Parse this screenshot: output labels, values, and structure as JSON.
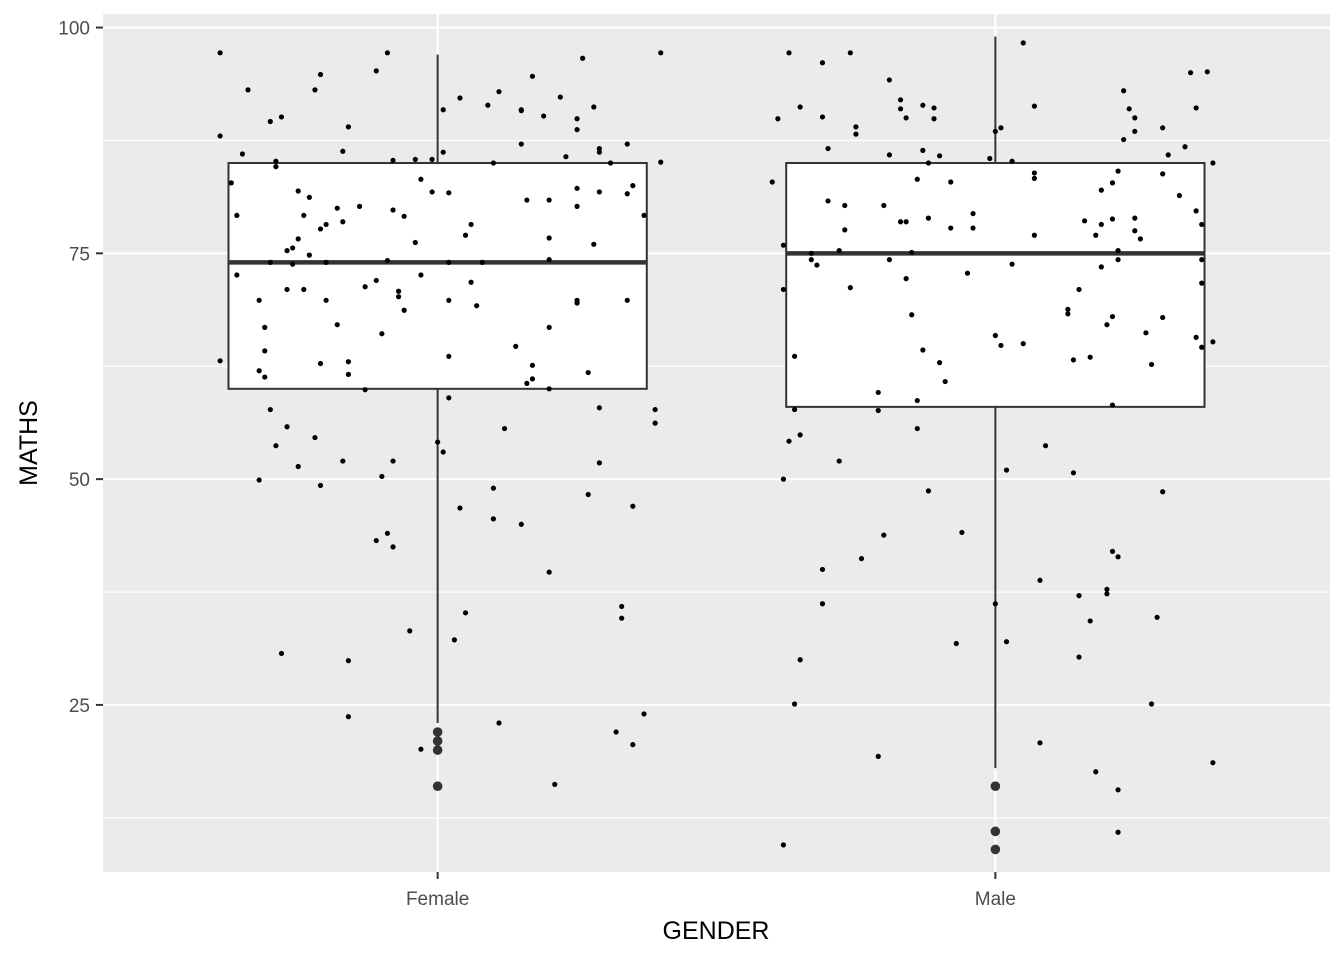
{
  "chart_data": {
    "type": "box",
    "xlabel": "GENDER",
    "ylabel": "MATHS",
    "categories": [
      "Female",
      "Male"
    ],
    "ylim": [
      6.5,
      101.5
    ],
    "yticks": [
      25,
      50,
      75,
      100
    ],
    "grid": true,
    "boxes": [
      {
        "category": "Female",
        "whisker_low": 23,
        "q1": 60,
        "median": 74,
        "q3": 85,
        "whisker_high": 97,
        "outliers": [
          22,
          21,
          20,
          16
        ]
      },
      {
        "category": "Male",
        "whisker_low": 18,
        "q1": 58,
        "median": 75,
        "q3": 85,
        "whisker_high": 99,
        "outliers": [
          16,
          11,
          9
        ]
      }
    ],
    "jitter_points": [
      {
        "category": "Female",
        "points": [
          [
            -0.39,
            97.2
          ],
          [
            -0.39,
            88
          ],
          [
            -0.39,
            63.1
          ],
          [
            -0.37,
            82.8
          ],
          [
            -0.36,
            79.2
          ],
          [
            -0.36,
            72.6
          ],
          [
            -0.35,
            86
          ],
          [
            -0.34,
            93.1
          ],
          [
            -0.32,
            69.8
          ],
          [
            -0.32,
            62
          ],
          [
            -0.32,
            49.9
          ],
          [
            -0.31,
            64.2
          ],
          [
            -0.31,
            66.8
          ],
          [
            -0.31,
            61.3
          ],
          [
            -0.3,
            74
          ],
          [
            -0.3,
            57.7
          ],
          [
            -0.3,
            89.6
          ],
          [
            -0.29,
            85.2
          ],
          [
            -0.29,
            84.6
          ],
          [
            -0.29,
            53.7
          ],
          [
            -0.28,
            90.1
          ],
          [
            -0.28,
            30.7
          ],
          [
            -0.27,
            75.3
          ],
          [
            -0.27,
            71
          ],
          [
            -0.27,
            55.8
          ],
          [
            -0.26,
            75.6
          ],
          [
            -0.26,
            73.8
          ],
          [
            -0.25,
            81.9
          ],
          [
            -0.25,
            51.4
          ],
          [
            -0.25,
            76.6
          ],
          [
            -0.24,
            71
          ],
          [
            -0.24,
            79.2
          ],
          [
            -0.23,
            81.2
          ],
          [
            -0.23,
            74.8
          ],
          [
            -0.22,
            93.1
          ],
          [
            -0.22,
            54.6
          ],
          [
            -0.21,
            94.8
          ],
          [
            -0.21,
            77.7
          ],
          [
            -0.21,
            62.8
          ],
          [
            -0.21,
            49.3
          ],
          [
            -0.2,
            78.2
          ],
          [
            -0.2,
            74
          ],
          [
            -0.2,
            69.8
          ],
          [
            -0.18,
            80
          ],
          [
            -0.18,
            67.1
          ],
          [
            -0.17,
            52
          ],
          [
            -0.17,
            86.3
          ],
          [
            -0.17,
            78.5
          ],
          [
            -0.16,
            89
          ],
          [
            -0.16,
            63
          ],
          [
            -0.16,
            61.6
          ],
          [
            -0.16,
            29.9
          ],
          [
            -0.16,
            23.7
          ],
          [
            -0.14,
            80.2
          ],
          [
            -0.13,
            71.3
          ],
          [
            -0.13,
            59.9
          ],
          [
            -0.11,
            95.2
          ],
          [
            -0.11,
            72
          ],
          [
            -0.11,
            43.2
          ],
          [
            -0.1,
            66.1
          ],
          [
            -0.1,
            50.3
          ],
          [
            -0.09,
            97.2
          ],
          [
            -0.09,
            74.2
          ],
          [
            -0.09,
            44
          ],
          [
            -0.08,
            85.3
          ],
          [
            -0.08,
            79.8
          ],
          [
            -0.08,
            42.5
          ],
          [
            -0.08,
            52
          ],
          [
            -0.07,
            70.8
          ],
          [
            -0.07,
            70.2
          ],
          [
            -0.06,
            79.1
          ],
          [
            -0.06,
            68.7
          ],
          [
            -0.05,
            33.2
          ],
          [
            -0.04,
            85.4
          ],
          [
            -0.04,
            76.2
          ],
          [
            -0.03,
            20.1
          ],
          [
            -0.03,
            83.2
          ],
          [
            -0.03,
            72.6
          ],
          [
            -0.01,
            85.4
          ],
          [
            -0.01,
            81.8
          ],
          [
            0,
            54.1
          ],
          [
            0.01,
            90.9
          ],
          [
            0.01,
            86.2
          ],
          [
            0.01,
            53
          ],
          [
            0.02,
            81.7
          ],
          [
            0.02,
            69.8
          ],
          [
            0.02,
            63.6
          ],
          [
            0.02,
            59
          ],
          [
            0.02,
            74
          ],
          [
            0.03,
            32.2
          ],
          [
            0.04,
            92.2
          ],
          [
            0.04,
            46.8
          ],
          [
            0.05,
            77
          ],
          [
            0.05,
            35.2
          ],
          [
            0.06,
            78.2
          ],
          [
            0.06,
            71.8
          ],
          [
            0.07,
            69.2
          ],
          [
            0.08,
            74
          ],
          [
            0.09,
            91.4
          ],
          [
            0.1,
            85
          ],
          [
            0.1,
            49
          ],
          [
            0.1,
            45.6
          ],
          [
            0.11,
            92.9
          ],
          [
            0.12,
            55.6
          ],
          [
            0.11,
            23
          ],
          [
            0.14,
            64.7
          ],
          [
            0.15,
            90.9
          ],
          [
            0.15,
            90.8
          ],
          [
            0.15,
            87.1
          ],
          [
            0.16,
            80.9
          ],
          [
            0.16,
            60.6
          ],
          [
            0.17,
            94.6
          ],
          [
            0.17,
            61.1
          ],
          [
            0.17,
            62.6
          ],
          [
            0.15,
            45
          ],
          [
            0.19,
            90.2
          ],
          [
            0.2,
            80.9
          ],
          [
            0.2,
            76.7
          ],
          [
            0.2,
            74.3
          ],
          [
            0.2,
            60
          ],
          [
            0.2,
            39.7
          ],
          [
            0.2,
            66.8
          ],
          [
            0.22,
            92.3
          ],
          [
            0.23,
            85.7
          ],
          [
            0.21,
            16.2
          ],
          [
            0.25,
            89.9
          ],
          [
            0.25,
            88.7
          ],
          [
            0.25,
            82.2
          ],
          [
            0.25,
            80.2
          ],
          [
            0.25,
            69.8
          ],
          [
            0.25,
            69.5
          ],
          [
            0.26,
            96.6
          ],
          [
            0.27,
            48.3
          ],
          [
            0.27,
            61.8
          ],
          [
            0.28,
            91.2
          ],
          [
            0.29,
            86.2
          ],
          [
            0.29,
            86.6
          ],
          [
            0.29,
            81.8
          ],
          [
            0.28,
            76
          ],
          [
            0.29,
            57.9
          ],
          [
            0.29,
            51.8
          ],
          [
            0.31,
            85
          ],
          [
            0.33,
            35.9
          ],
          [
            0.33,
            34.6
          ],
          [
            0.32,
            22
          ],
          [
            0.34,
            87.1
          ],
          [
            0.34,
            81.6
          ],
          [
            0.34,
            69.8
          ],
          [
            0.35,
            82.5
          ],
          [
            0.35,
            47
          ],
          [
            0.35,
            20.6
          ],
          [
            0.37,
            79.2
          ],
          [
            0.37,
            24
          ],
          [
            0.39,
            57.7
          ],
          [
            0.39,
            56.2
          ],
          [
            0.4,
            97.2
          ],
          [
            0.4,
            85.1
          ]
        ]
      },
      {
        "category": "Male",
        "points": [
          [
            -0.4,
            82.9
          ],
          [
            -0.39,
            89.9
          ],
          [
            -0.38,
            75.9
          ],
          [
            -0.38,
            71
          ],
          [
            -0.38,
            50
          ],
          [
            -0.38,
            9.5
          ],
          [
            -0.37,
            97.2
          ],
          [
            -0.37,
            54.2
          ],
          [
            -0.36,
            63.6
          ],
          [
            -0.35,
            91.2
          ],
          [
            -0.36,
            57.7
          ],
          [
            -0.35,
            54.9
          ],
          [
            -0.36,
            25.1
          ],
          [
            -0.35,
            30
          ],
          [
            -0.33,
            75
          ],
          [
            -0.33,
            74.3
          ],
          [
            -0.32,
            73.7
          ],
          [
            -0.31,
            90.1
          ],
          [
            -0.31,
            96.1
          ],
          [
            -0.31,
            40
          ],
          [
            -0.31,
            36.2
          ],
          [
            -0.3,
            86.6
          ],
          [
            -0.3,
            80.8
          ],
          [
            -0.28,
            75.3
          ],
          [
            -0.28,
            52
          ],
          [
            -0.27,
            80.3
          ],
          [
            -0.27,
            77.6
          ],
          [
            -0.26,
            71.2
          ],
          [
            -0.26,
            97.2
          ],
          [
            -0.25,
            89
          ],
          [
            -0.25,
            88.2
          ],
          [
            -0.24,
            41.2
          ],
          [
            -0.21,
            59.6
          ],
          [
            -0.21,
            57.6
          ],
          [
            -0.21,
            19.3
          ],
          [
            -0.2,
            80.3
          ],
          [
            -0.19,
            74.3
          ],
          [
            -0.2,
            43.8
          ],
          [
            -0.19,
            94.2
          ],
          [
            -0.19,
            85.9
          ],
          [
            -0.17,
            92
          ],
          [
            -0.17,
            91
          ],
          [
            -0.16,
            90
          ],
          [
            -0.17,
            78.5
          ],
          [
            -0.16,
            78.5
          ],
          [
            -0.16,
            72.2
          ],
          [
            -0.15,
            68.2
          ],
          [
            -0.15,
            75.1
          ],
          [
            -0.14,
            83.2
          ],
          [
            -0.14,
            58.7
          ],
          [
            -0.14,
            55.6
          ],
          [
            -0.13,
            91.4
          ],
          [
            -0.13,
            86.4
          ],
          [
            -0.12,
            85
          ],
          [
            -0.13,
            64.3
          ],
          [
            -0.12,
            48.7
          ],
          [
            -0.12,
            78.9
          ],
          [
            -0.11,
            91.1
          ],
          [
            -0.11,
            89.9
          ],
          [
            -0.1,
            85.8
          ],
          [
            -0.1,
            62.9
          ],
          [
            -0.09,
            60.8
          ],
          [
            -0.08,
            82.9
          ],
          [
            -0.08,
            77.8
          ],
          [
            -0.07,
            31.8
          ],
          [
            -0.06,
            44.1
          ],
          [
            -0.05,
            72.8
          ],
          [
            -0.04,
            79.4
          ],
          [
            -0.04,
            77.8
          ],
          [
            -0.01,
            85.5
          ],
          [
            0,
            88.5
          ],
          [
            0,
            65.9
          ],
          [
            0,
            36.2
          ],
          [
            0.01,
            88.9
          ],
          [
            0.01,
            64.8
          ],
          [
            0.02,
            51
          ],
          [
            0.02,
            32
          ],
          [
            0.03,
            73.8
          ],
          [
            0.03,
            85.2
          ],
          [
            0.05,
            65
          ],
          [
            0.05,
            98.3
          ],
          [
            0.07,
            91.3
          ],
          [
            0.07,
            83.9
          ],
          [
            0.07,
            83.3
          ],
          [
            0.07,
            77
          ],
          [
            0.08,
            20.8
          ],
          [
            0.08,
            38.8
          ],
          [
            0.09,
            53.7
          ],
          [
            0.13,
            68.3
          ],
          [
            0.13,
            68.8
          ],
          [
            0.14,
            50.7
          ],
          [
            0.14,
            63.2
          ],
          [
            0.15,
            37.1
          ],
          [
            0.15,
            71
          ],
          [
            0.15,
            30.3
          ],
          [
            0.16,
            78.6
          ],
          [
            0.17,
            34.3
          ],
          [
            0.17,
            63.5
          ],
          [
            0.18,
            17.6
          ],
          [
            0.18,
            77
          ],
          [
            0.19,
            78.2
          ],
          [
            0.19,
            82
          ],
          [
            0.19,
            73.5
          ],
          [
            0.2,
            37.8
          ],
          [
            0.2,
            37.3
          ],
          [
            0.2,
            67.1
          ],
          [
            0.21,
            82.8
          ],
          [
            0.21,
            78.8
          ],
          [
            0.21,
            68
          ],
          [
            0.21,
            58.2
          ],
          [
            0.21,
            42
          ],
          [
            0.22,
            15.6
          ],
          [
            0.22,
            75.3
          ],
          [
            0.22,
            41.4
          ],
          [
            0.22,
            84.1
          ],
          [
            0.22,
            74.3
          ],
          [
            0.22,
            10.9
          ],
          [
            0.23,
            93
          ],
          [
            0.23,
            87.6
          ],
          [
            0.24,
            91
          ],
          [
            0.25,
            78.9
          ],
          [
            0.25,
            77.5
          ],
          [
            0.25,
            90
          ],
          [
            0.25,
            88.5
          ],
          [
            0.26,
            76.6
          ],
          [
            0.27,
            66.2
          ],
          [
            0.28,
            62.7
          ],
          [
            0.28,
            25.1
          ],
          [
            0.29,
            34.7
          ],
          [
            0.3,
            67.9
          ],
          [
            0.3,
            83.8
          ],
          [
            0.3,
            88.9
          ],
          [
            0.3,
            48.6
          ],
          [
            0.31,
            85.9
          ],
          [
            0.33,
            81.4
          ],
          [
            0.34,
            86.8
          ],
          [
            0.35,
            95
          ],
          [
            0.36,
            91.1
          ],
          [
            0.36,
            79.7
          ],
          [
            0.36,
            65.7
          ],
          [
            0.37,
            74.3
          ],
          [
            0.37,
            78.2
          ],
          [
            0.37,
            71.7
          ],
          [
            0.37,
            64.6
          ],
          [
            0.38,
            95.1
          ],
          [
            0.39,
            85
          ],
          [
            0.39,
            65.2
          ],
          [
            0.39,
            18.6
          ]
        ]
      }
    ]
  }
}
